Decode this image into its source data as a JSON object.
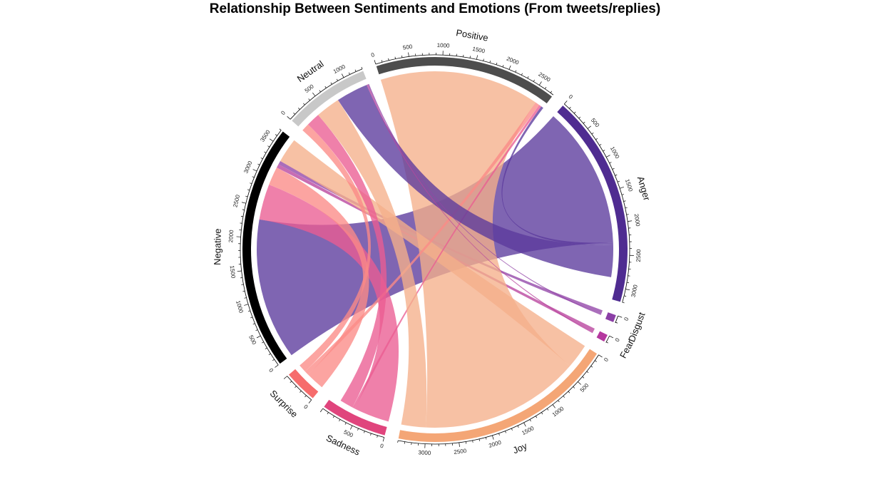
{
  "chart_data": {
    "type": "chord",
    "title": "Relationship Between Sentiments and Emotions (From tweets/replies)",
    "sectors": [
      {
        "name": "Neutral",
        "total": 1300,
        "color": "#c8c8c8"
      },
      {
        "name": "Positive",
        "total": 2750,
        "color": "#4d4d4d"
      },
      {
        "name": "Anger",
        "total": 3200,
        "color": "#4f2c91"
      },
      {
        "name": "Disgust",
        "total": 110,
        "color": "#8b3fa6"
      },
      {
        "name": "Fear",
        "total": 110,
        "color": "#b5389f"
      },
      {
        "name": "Joy",
        "total": 3400,
        "color": "#f4a676"
      },
      {
        "name": "Sadness",
        "total": 1000,
        "color": "#e0457d"
      },
      {
        "name": "Surprise",
        "total": 500,
        "color": "#f66c6c"
      },
      {
        "name": "Negative",
        "total": 3700,
        "color": "#000000"
      }
    ],
    "links": [
      {
        "from": "Negative",
        "to": "Anger",
        "value": 2300,
        "color": "#5b3a9c"
      },
      {
        "from": "Negative",
        "to": "Sadness",
        "value": 580,
        "color": "#ea5c92"
      },
      {
        "from": "Negative",
        "to": "Surprise",
        "value": 300,
        "color": "#fb8a86"
      },
      {
        "from": "Negative",
        "to": "Fear",
        "value": 60,
        "color": "#b8449e"
      },
      {
        "from": "Negative",
        "to": "Disgust",
        "value": 60,
        "color": "#9245a8"
      },
      {
        "from": "Negative",
        "to": "Joy",
        "value": 400,
        "color": "#f5b08b"
      },
      {
        "from": "Positive",
        "to": "Joy",
        "value": 2600,
        "color": "#f5b08b"
      },
      {
        "from": "Positive",
        "to": "Surprise",
        "value": 70,
        "color": "#fb8a86"
      },
      {
        "from": "Positive",
        "to": "Sadness",
        "value": 40,
        "color": "#ea5c92"
      },
      {
        "from": "Positive",
        "to": "Anger",
        "value": 40,
        "color": "#5b3a9c"
      },
      {
        "from": "Neutral",
        "to": "Surprise",
        "value": 130,
        "color": "#fb8a86"
      },
      {
        "from": "Neutral",
        "to": "Sadness",
        "value": 220,
        "color": "#ea5c92"
      },
      {
        "from": "Neutral",
        "to": "Joy",
        "value": 400,
        "color": "#f5b08b"
      },
      {
        "from": "Neutral",
        "to": "Anger",
        "value": 520,
        "color": "#5b3a9c"
      },
      {
        "from": "Neutral",
        "to": "Fear",
        "value": 20,
        "color": "#b8449e"
      },
      {
        "from": "Neutral",
        "to": "Disgust",
        "value": 20,
        "color": "#9245a8"
      }
    ],
    "axis_ticks": {
      "Neutral": [
        0,
        500,
        1000
      ],
      "Positive": [
        0,
        500,
        1000,
        1500,
        2000,
        2500
      ],
      "Anger": [
        0,
        500,
        1000,
        1500,
        2000,
        2500,
        3000
      ],
      "Disgust": [
        0
      ],
      "Fear": [
        0
      ],
      "Joy": [
        0,
        500,
        1000,
        1500,
        2000,
        2500,
        3000
      ],
      "Sadness": [
        0,
        500
      ],
      "Surprise": [
        0
      ],
      "Negative": [
        0,
        500,
        1000,
        1500,
        2000,
        2500,
        3000,
        3500
      ]
    }
  }
}
